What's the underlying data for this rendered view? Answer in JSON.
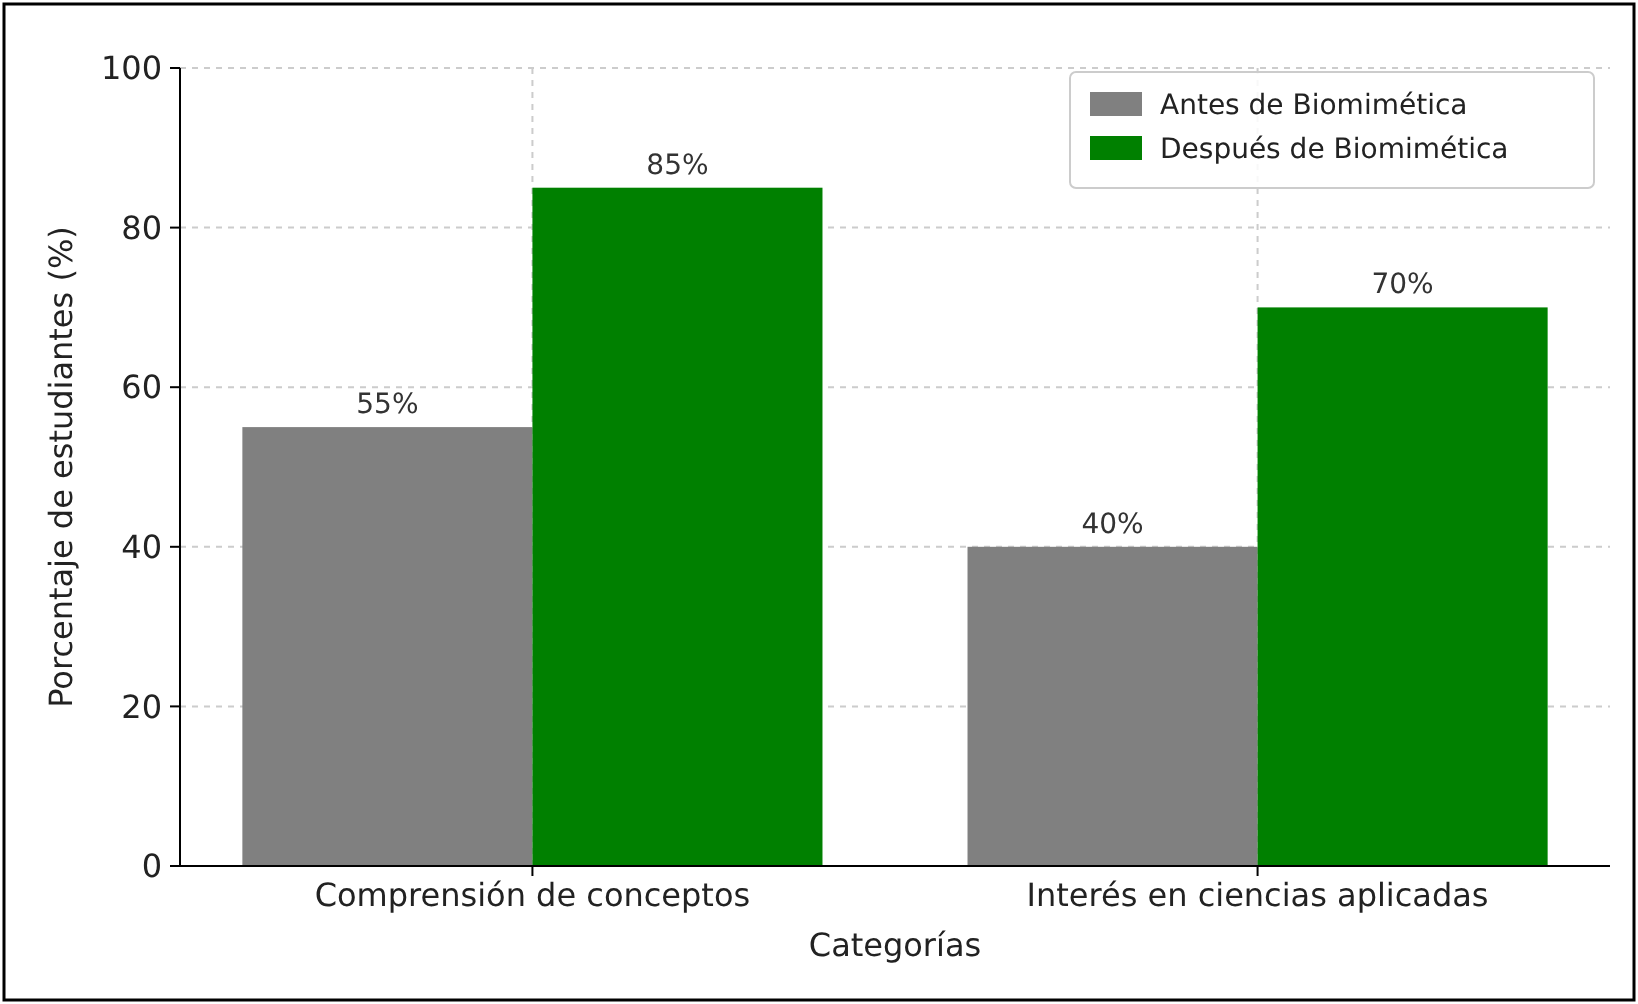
{
  "chart_data": {
    "type": "bar",
    "xlabel": "Categorías",
    "ylabel": "Porcentaje de estudiantes (%)",
    "categories": [
      "Comprensión de conceptos",
      "Interés en ciencias aplicadas"
    ],
    "series": [
      {
        "name": "Antes de Biomimética",
        "color": "#808080",
        "values": [
          55,
          40
        ],
        "value_labels": [
          "55%",
          "40%"
        ]
      },
      {
        "name": "Después de Biomimética",
        "color": "#008000",
        "values": [
          85,
          70
        ],
        "value_labels": [
          "85%",
          "70%"
        ]
      }
    ],
    "ylim": [
      0,
      100
    ],
    "yticks": [
      0,
      20,
      40,
      60,
      80,
      100
    ],
    "grid": true,
    "legend": "top right"
  }
}
